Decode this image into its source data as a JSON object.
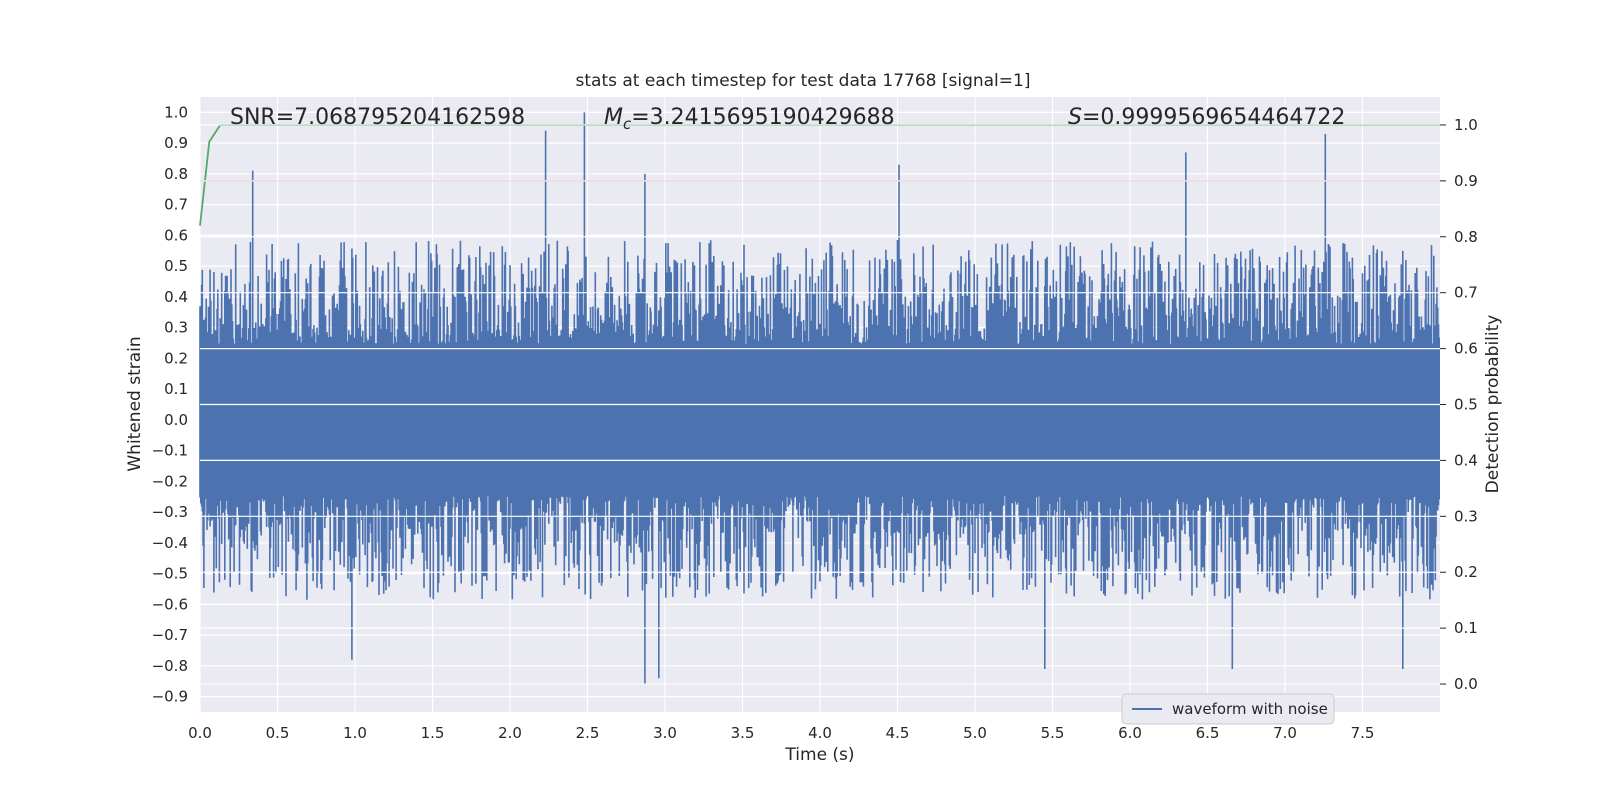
{
  "chart_data": {
    "type": "line",
    "title": "stats at each timestep for test data 17768 [signal=1]",
    "xlabel": "Time (s)",
    "ylabel_left": "Whitened strain",
    "ylabel_right": "Detection probability",
    "xlim": [
      0.0,
      8.0
    ],
    "ylim_left": [
      -0.95,
      1.05
    ],
    "ylim_right": [
      -0.05,
      1.05
    ],
    "x_ticks": [
      "0.0",
      "0.5",
      "1.0",
      "1.5",
      "2.0",
      "2.5",
      "3.0",
      "3.5",
      "4.0",
      "4.5",
      "5.0",
      "5.5",
      "6.0",
      "6.5",
      "7.0",
      "7.5"
    ],
    "y_left_ticks": [
      "1.0",
      "0.9",
      "0.8",
      "0.7",
      "0.6",
      "0.5",
      "0.4",
      "0.3",
      "0.2",
      "0.1",
      "0.0",
      "−0.1",
      "−0.2",
      "−0.3",
      "−0.4",
      "−0.5",
      "−0.6",
      "−0.7",
      "−0.8",
      "−0.9"
    ],
    "y_right_ticks": [
      "1.0",
      "0.9",
      "0.8",
      "0.7",
      "0.6",
      "0.5",
      "0.4",
      "0.3",
      "0.2",
      "0.1",
      "0.0"
    ],
    "grid": true,
    "legend": {
      "entries": [
        "waveform with noise"
      ],
      "placement": "lower-right"
    },
    "annotations": {
      "snr": "SNR=7.068795204162598",
      "mc_symbol": "M",
      "mc_sub": "c",
      "mc_value": "=3.2415695190429688",
      "s_symbol": "S",
      "s_value": "=0.9999569654464722"
    },
    "series": [
      {
        "name": "waveform with noise",
        "axis": "left",
        "color": "#4c72b0",
        "envelope_upper_typical": 0.45,
        "envelope_lower_typical": -0.45,
        "peaks": [
          {
            "x": 0.34,
            "y": 0.81
          },
          {
            "x": 2.23,
            "y": 0.94
          },
          {
            "x": 2.48,
            "y": 1.0
          },
          {
            "x": 2.87,
            "y": 0.8
          },
          {
            "x": 4.51,
            "y": 0.83
          },
          {
            "x": 6.36,
            "y": 0.87
          },
          {
            "x": 7.26,
            "y": 0.93
          }
        ],
        "troughs": [
          {
            "x": 0.98,
            "y": -0.78
          },
          {
            "x": 2.87,
            "y": -0.86
          },
          {
            "x": 2.96,
            "y": -0.84
          },
          {
            "x": 5.45,
            "y": -0.81
          },
          {
            "x": 6.66,
            "y": -0.81
          },
          {
            "x": 7.76,
            "y": -0.81
          }
        ]
      },
      {
        "name": "",
        "axis": "right",
        "color": "#55a868",
        "x": [
          0.0,
          0.06,
          0.13,
          0.2,
          8.0
        ],
        "y": [
          0.82,
          0.97,
          1.0,
          1.0,
          1.0
        ]
      }
    ],
    "threshold": {
      "axis": "right",
      "value": 0.9,
      "color": "#c44e52"
    }
  }
}
